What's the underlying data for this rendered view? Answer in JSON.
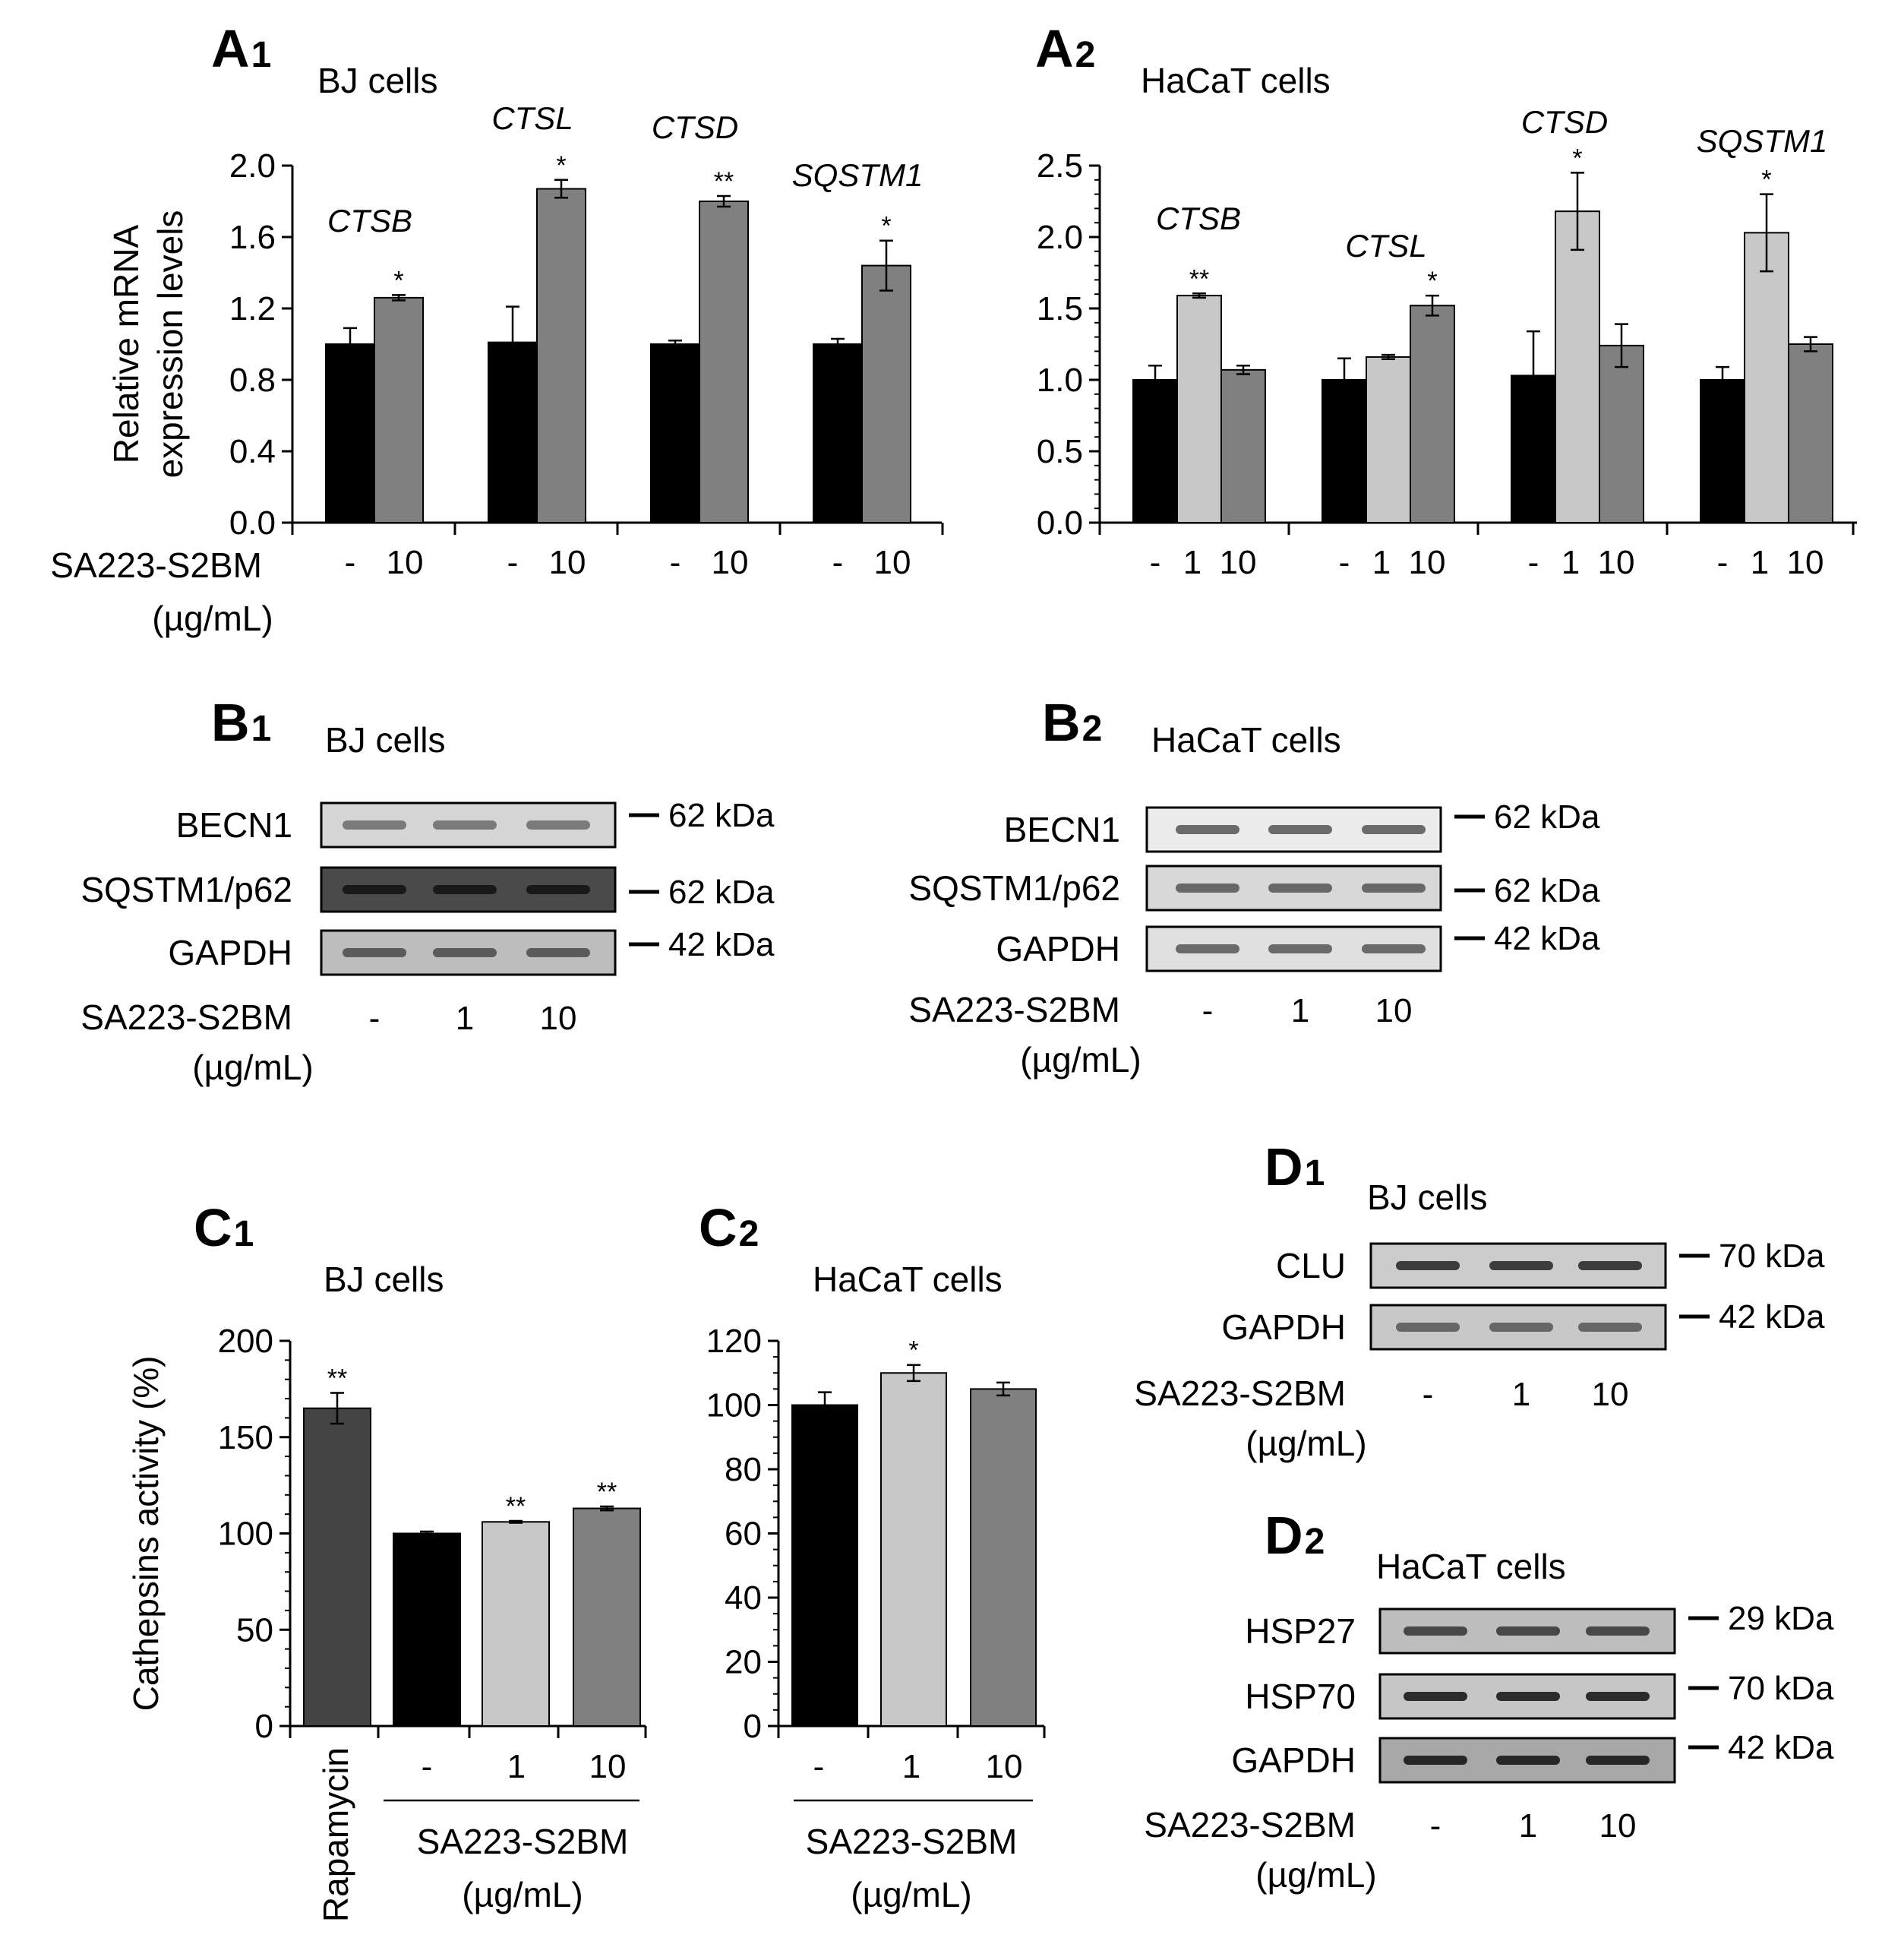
{
  "colors": {
    "black": "#000000",
    "light_gray": "#c8c8c8",
    "mid_gray": "#808080",
    "dark_gray": "#444444",
    "blot_bg": "#d0d0d0"
  },
  "panels": {
    "A1": {
      "letter": "A",
      "sub": "1",
      "title": "BJ cells"
    },
    "A2": {
      "letter": "A",
      "sub": "2",
      "title": "HaCaT cells"
    },
    "B1": {
      "letter": "B",
      "sub": "1",
      "title": "BJ cells"
    },
    "B2": {
      "letter": "B",
      "sub": "2",
      "title": "HaCaT cells"
    },
    "C1": {
      "letter": "C",
      "sub": "1",
      "title": "BJ cells"
    },
    "C2": {
      "letter": "C",
      "sub": "2",
      "title": "HaCaT cells"
    },
    "D1": {
      "letter": "D",
      "sub": "1",
      "title": "BJ cells"
    },
    "D2": {
      "letter": "D",
      "sub": "2",
      "title": "HaCaT cells"
    }
  },
  "treatment_label": "SA223-S2BM",
  "unit_label": "(µg/mL)",
  "chart_data": [
    {
      "id": "A1",
      "type": "bar",
      "title": "BJ cells",
      "ylabel_line1": "Relative mRNA",
      "ylabel_line2": "expression levels",
      "ylim": [
        0,
        2.0
      ],
      "yticks": [
        "0.0",
        "0.4",
        "0.8",
        "1.2",
        "1.6",
        "2.0"
      ],
      "doses": [
        "-",
        "10"
      ],
      "groups": [
        {
          "name": "CTSB",
          "values": [
            1.0,
            1.26
          ],
          "errors": [
            0.09,
            0.015
          ],
          "stars": [
            "",
            "*"
          ]
        },
        {
          "name": "CTSL",
          "values": [
            1.01,
            1.87
          ],
          "errors": [
            0.2,
            0.05
          ],
          "stars": [
            "",
            "*"
          ]
        },
        {
          "name": "CTSD",
          "values": [
            1.0,
            1.8
          ],
          "errors": [
            0.02,
            0.03
          ],
          "stars": [
            "",
            "**"
          ]
        },
        {
          "name": "SQSTM1",
          "values": [
            1.0,
            1.44
          ],
          "errors": [
            0.03,
            0.14
          ],
          "stars": [
            "",
            "*"
          ]
        }
      ]
    },
    {
      "id": "A2",
      "type": "bar",
      "title": "HaCaT cells",
      "ylim": [
        0,
        2.5
      ],
      "yticks": [
        "0.0",
        "0.5",
        "1.0",
        "1.5",
        "2.0",
        "2.5"
      ],
      "doses": [
        "-",
        "1",
        "10"
      ],
      "groups": [
        {
          "name": "CTSB",
          "values": [
            1.0,
            1.59,
            1.07
          ],
          "errors": [
            0.1,
            0.015,
            0.03
          ],
          "stars": [
            "",
            "**",
            ""
          ]
        },
        {
          "name": "CTSL",
          "values": [
            1.0,
            1.16,
            1.52
          ],
          "errors": [
            0.15,
            0.015,
            0.07
          ],
          "stars": [
            "",
            "",
            "*"
          ]
        },
        {
          "name": "CTSD",
          "values": [
            1.03,
            2.18,
            1.24
          ],
          "errors": [
            0.31,
            0.27,
            0.15
          ],
          "stars": [
            "",
            "*",
            ""
          ]
        },
        {
          "name": "SQSTM1",
          "values": [
            1.0,
            2.03,
            1.25
          ],
          "errors": [
            0.09,
            0.27,
            0.05
          ],
          "stars": [
            "",
            "*",
            ""
          ]
        }
      ]
    },
    {
      "id": "C1",
      "type": "bar",
      "title": "BJ cells",
      "ylabel": "Cathepsins activity (%)",
      "ylim": [
        0,
        200
      ],
      "yticks": [
        "0",
        "50",
        "100",
        "150",
        "200"
      ],
      "bars": [
        {
          "label": "Rapamycin",
          "value": 165,
          "error": 8,
          "star": "**"
        },
        {
          "label": "-",
          "value": 100,
          "error": 1,
          "star": ""
        },
        {
          "label": "1",
          "value": 106,
          "error": 0.5,
          "star": "**"
        },
        {
          "label": "10",
          "value": 113,
          "error": 1,
          "star": "**"
        }
      ]
    },
    {
      "id": "C2",
      "type": "bar",
      "title": "HaCaT cells",
      "ylim": [
        0,
        120
      ],
      "yticks": [
        "0",
        "20",
        "40",
        "60",
        "80",
        "100",
        "120"
      ],
      "bars": [
        {
          "label": "-",
          "value": 100,
          "error": 4,
          "star": ""
        },
        {
          "label": "1",
          "value": 110,
          "error": 2.5,
          "star": "*"
        },
        {
          "label": "10",
          "value": 105,
          "error": 2,
          "star": ""
        }
      ]
    }
  ],
  "blots": {
    "B1": {
      "rows": [
        {
          "label": "BECN1",
          "kda": "62 kDa"
        },
        {
          "label": "SQSTM1/p62",
          "kda": "62 kDa"
        },
        {
          "label": "GAPDH",
          "kda": "42 kDa"
        }
      ],
      "lanes": [
        "-",
        "1",
        "10"
      ]
    },
    "B2": {
      "rows": [
        {
          "label": "BECN1",
          "kda": "62 kDa"
        },
        {
          "label": "SQSTM1/p62",
          "kda": "62 kDa"
        },
        {
          "label": "GAPDH",
          "kda": "42 kDa"
        }
      ],
      "lanes": [
        "-",
        "1",
        "10"
      ]
    },
    "D1": {
      "rows": [
        {
          "label": "CLU",
          "kda": "70 kDa"
        },
        {
          "label": "GAPDH",
          "kda": "42 kDa"
        }
      ],
      "lanes": [
        "-",
        "1",
        "10"
      ]
    },
    "D2": {
      "rows": [
        {
          "label": "HSP27",
          "kda": "29 kDa"
        },
        {
          "label": "HSP70",
          "kda": "70 kDa"
        },
        {
          "label": "GAPDH",
          "kda": "42 kDa"
        }
      ],
      "lanes": [
        "-",
        "1",
        "10"
      ]
    }
  }
}
